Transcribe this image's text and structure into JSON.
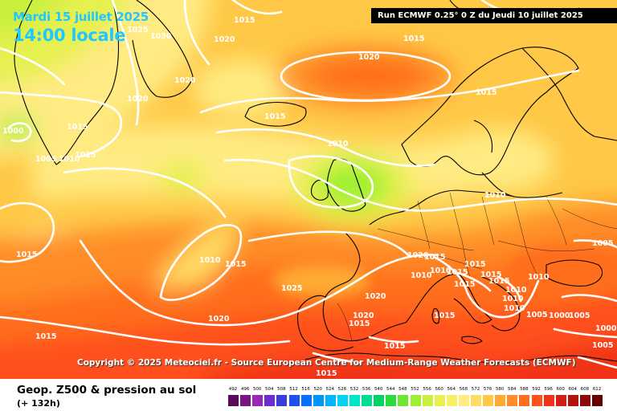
{
  "header": {
    "date": "Mardi 15 juillet 2025",
    "local_time": "14:00 locale",
    "run_info": "Run ECMWF 0.25° 0 Z du Jeudi 10 juillet 2025"
  },
  "footer": {
    "copyright": "Copyright © 2025 Meteociel.fr - Source European Centre for Medium-Range Weather Forecasts (ECMWF)",
    "field_title": "Geop. Z500 & pression au sol",
    "lead_time": "(+ 132h)"
  },
  "legend": {
    "values": [
      "492",
      "496",
      "500",
      "504",
      "508",
      "512",
      "516",
      "520",
      "524",
      "528",
      "532",
      "536",
      "540",
      "544",
      "548",
      "552",
      "556",
      "560",
      "564",
      "568",
      "572",
      "576",
      "580",
      "584",
      "588",
      "592",
      "596",
      "600",
      "604",
      "608",
      "612"
    ],
    "colors": [
      "#5a0a5a",
      "#7a1485",
      "#9a28b4",
      "#6e2cd0",
      "#3c3cdc",
      "#1e50f0",
      "#0a6eff",
      "#0096ff",
      "#00b4ff",
      "#00d2f0",
      "#00e6c8",
      "#00dc96",
      "#00d264",
      "#28dc3c",
      "#6ee632",
      "#a0f032",
      "#c8f03c",
      "#e6f050",
      "#f5f064",
      "#ffeb82",
      "#ffdc64",
      "#ffc846",
      "#ffaa32",
      "#ff8c28",
      "#ff6e1e",
      "#ff501e",
      "#f03219",
      "#d21e14",
      "#b4140f",
      "#8c0a0a",
      "#640000"
    ]
  },
  "pressure_labels": [
    "1015",
    "1025",
    "1030",
    "1020",
    "1015",
    "1020",
    "1020",
    "1015",
    "1020",
    "1015",
    "1000",
    "1015",
    "1005",
    "1010",
    "1015",
    "1010",
    "1010",
    "1015",
    "1010",
    "1005",
    "1015",
    "1015",
    "1020",
    "1015",
    "1010",
    "1010",
    "1015",
    "1015",
    "1015",
    "1015",
    "1010",
    "1010",
    "1010",
    "1010",
    "1025",
    "1020",
    "1020",
    "1020",
    "1015",
    "1005",
    "1015",
    "1015",
    "1000",
    "1005",
    "1000",
    "1005",
    "1015",
    "1015"
  ],
  "colors": {
    "title_cyan": "#21c8ff",
    "isobar": "#ffffff",
    "coastline": "#000000"
  }
}
